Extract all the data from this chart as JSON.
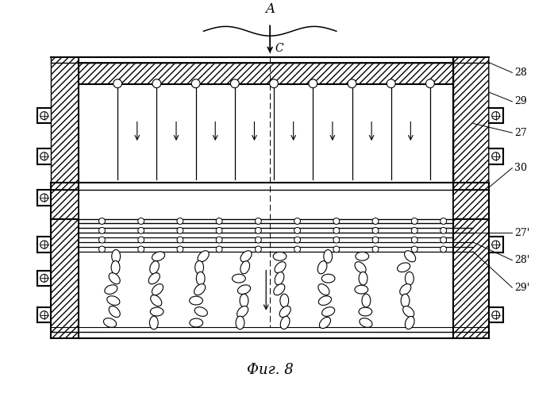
{
  "title": "Фиг. 8",
  "label_A": "A",
  "label_C": "C",
  "labels": [
    "28",
    "29",
    "27",
    "30",
    "27'",
    "28'",
    "29'"
  ],
  "background_color": "#ffffff",
  "line_color": "#000000",
  "fig_width": 6.98,
  "fig_height": 5.0,
  "dpi": 100
}
